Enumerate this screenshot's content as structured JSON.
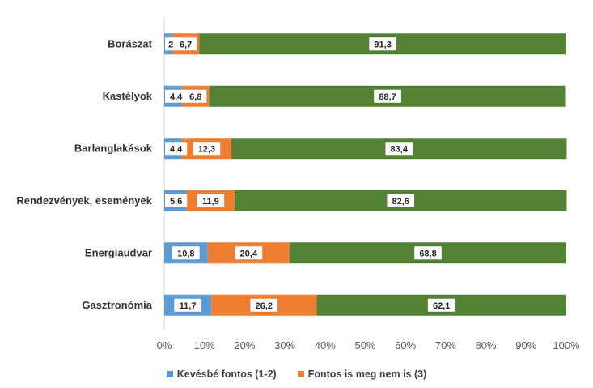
{
  "chart_data": {
    "type": "bar",
    "orientation": "horizontal",
    "stacked": true,
    "categories": [
      "Borászat",
      "Kastélyok",
      "Barlanglakások",
      "Rendezvények, események",
      "Energiaudvar",
      "Gasztronómia"
    ],
    "series": [
      {
        "name": "Kevésbé fontos (1-2)",
        "color": "#5b9bd5",
        "values": [
          2,
          4.4,
          4.4,
          5.6,
          10.8,
          11.7
        ],
        "labels": [
          "2",
          "4,4",
          "4,4",
          "5,6",
          "10,8",
          "11,7"
        ]
      },
      {
        "name": "Fontos is meg nem is (3)",
        "color": "#ed7d31",
        "values": [
          6.7,
          6.8,
          12.3,
          11.9,
          20.4,
          26.2
        ],
        "labels": [
          "6,7",
          "6,8",
          "12,3",
          "11,9",
          "20,4",
          "26,2"
        ]
      },
      {
        "name": "",
        "color": "#548235",
        "values": [
          91.3,
          88.7,
          83.4,
          82.6,
          68.8,
          62.1
        ],
        "labels": [
          "91,3",
          "88,7",
          "83,4",
          "82,6",
          "68,8",
          "62,1"
        ]
      }
    ],
    "xlim": [
      0,
      100
    ],
    "xticks": [
      "0%",
      "10%",
      "20%",
      "30%",
      "40%",
      "50%",
      "60%",
      "70%",
      "80%",
      "90%",
      "100%"
    ],
    "grid": false,
    "legend_position": "bottom"
  },
  "legend": [
    {
      "label": "Kevésbé fontos (1-2)",
      "color": "#5b9bd5"
    },
    {
      "label": "Fontos is meg nem is (3)",
      "color": "#ed7d31"
    }
  ]
}
